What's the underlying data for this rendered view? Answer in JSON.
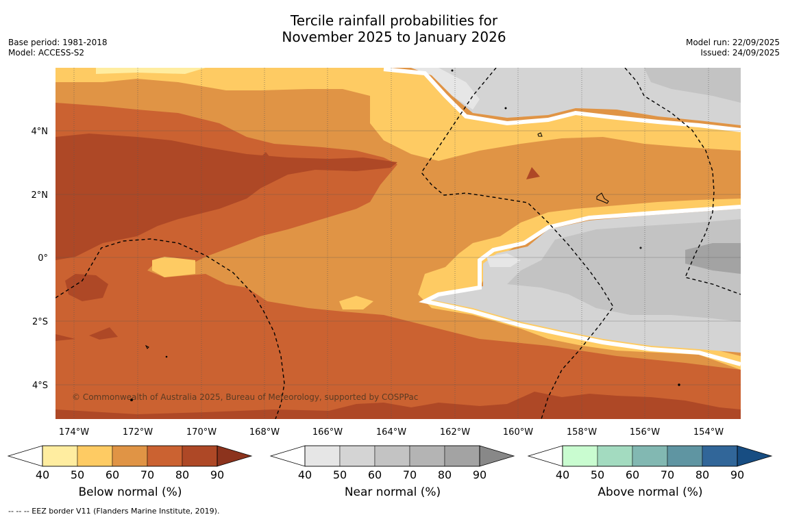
{
  "title": {
    "line1": "Tercile rainfall probabilities for",
    "line2": "November 2025 to January 2026"
  },
  "meta_left": {
    "base_period": "Base period: 1981-2018",
    "model": "Model: ACCESS-S2"
  },
  "meta_right": {
    "model_run": "Model run: 22/09/2025",
    "issued": "Issued: 24/09/2025"
  },
  "map": {
    "lat_labels": [
      "4°N",
      "2°N",
      "0°",
      "2°S",
      "4°S"
    ],
    "lon_labels": [
      "174°W",
      "172°W",
      "170°W",
      "168°W",
      "166°W",
      "164°W",
      "162°W",
      "160°W",
      "158°W",
      "156°W",
      "154°W"
    ],
    "copyright": "© Commonwealth of Australia 2025, Bureau of Meteorology, supported by COSPPac"
  },
  "colorbars": [
    {
      "name": "below",
      "label": "Below normal (%)",
      "ticks": [
        "40",
        "50",
        "60",
        "70",
        "80",
        "90"
      ],
      "colors": [
        "#ffeda0",
        "#fecb63",
        "#e09445",
        "#cb6231",
        "#ae4826",
        "#8c331d"
      ]
    },
    {
      "name": "near",
      "label": "Near normal (%)",
      "ticks": [
        "40",
        "50",
        "60",
        "70",
        "80",
        "90"
      ],
      "colors": [
        "#e6e6e6",
        "#d4d4d4",
        "#c3c3c3",
        "#b4b4b4",
        "#a3a3a3",
        "#888888"
      ]
    },
    {
      "name": "above",
      "label": "Above normal (%)",
      "ticks": [
        "40",
        "50",
        "60",
        "70",
        "80",
        "90"
      ],
      "colors": [
        "#c9fcd0",
        "#a3dbc0",
        "#82b8b2",
        "#5f95a2",
        "#316699",
        "#174d82"
      ]
    }
  ],
  "footnote": "--  --  -- EEZ border V11 (Flanders Marine Institute, 2019)."
}
